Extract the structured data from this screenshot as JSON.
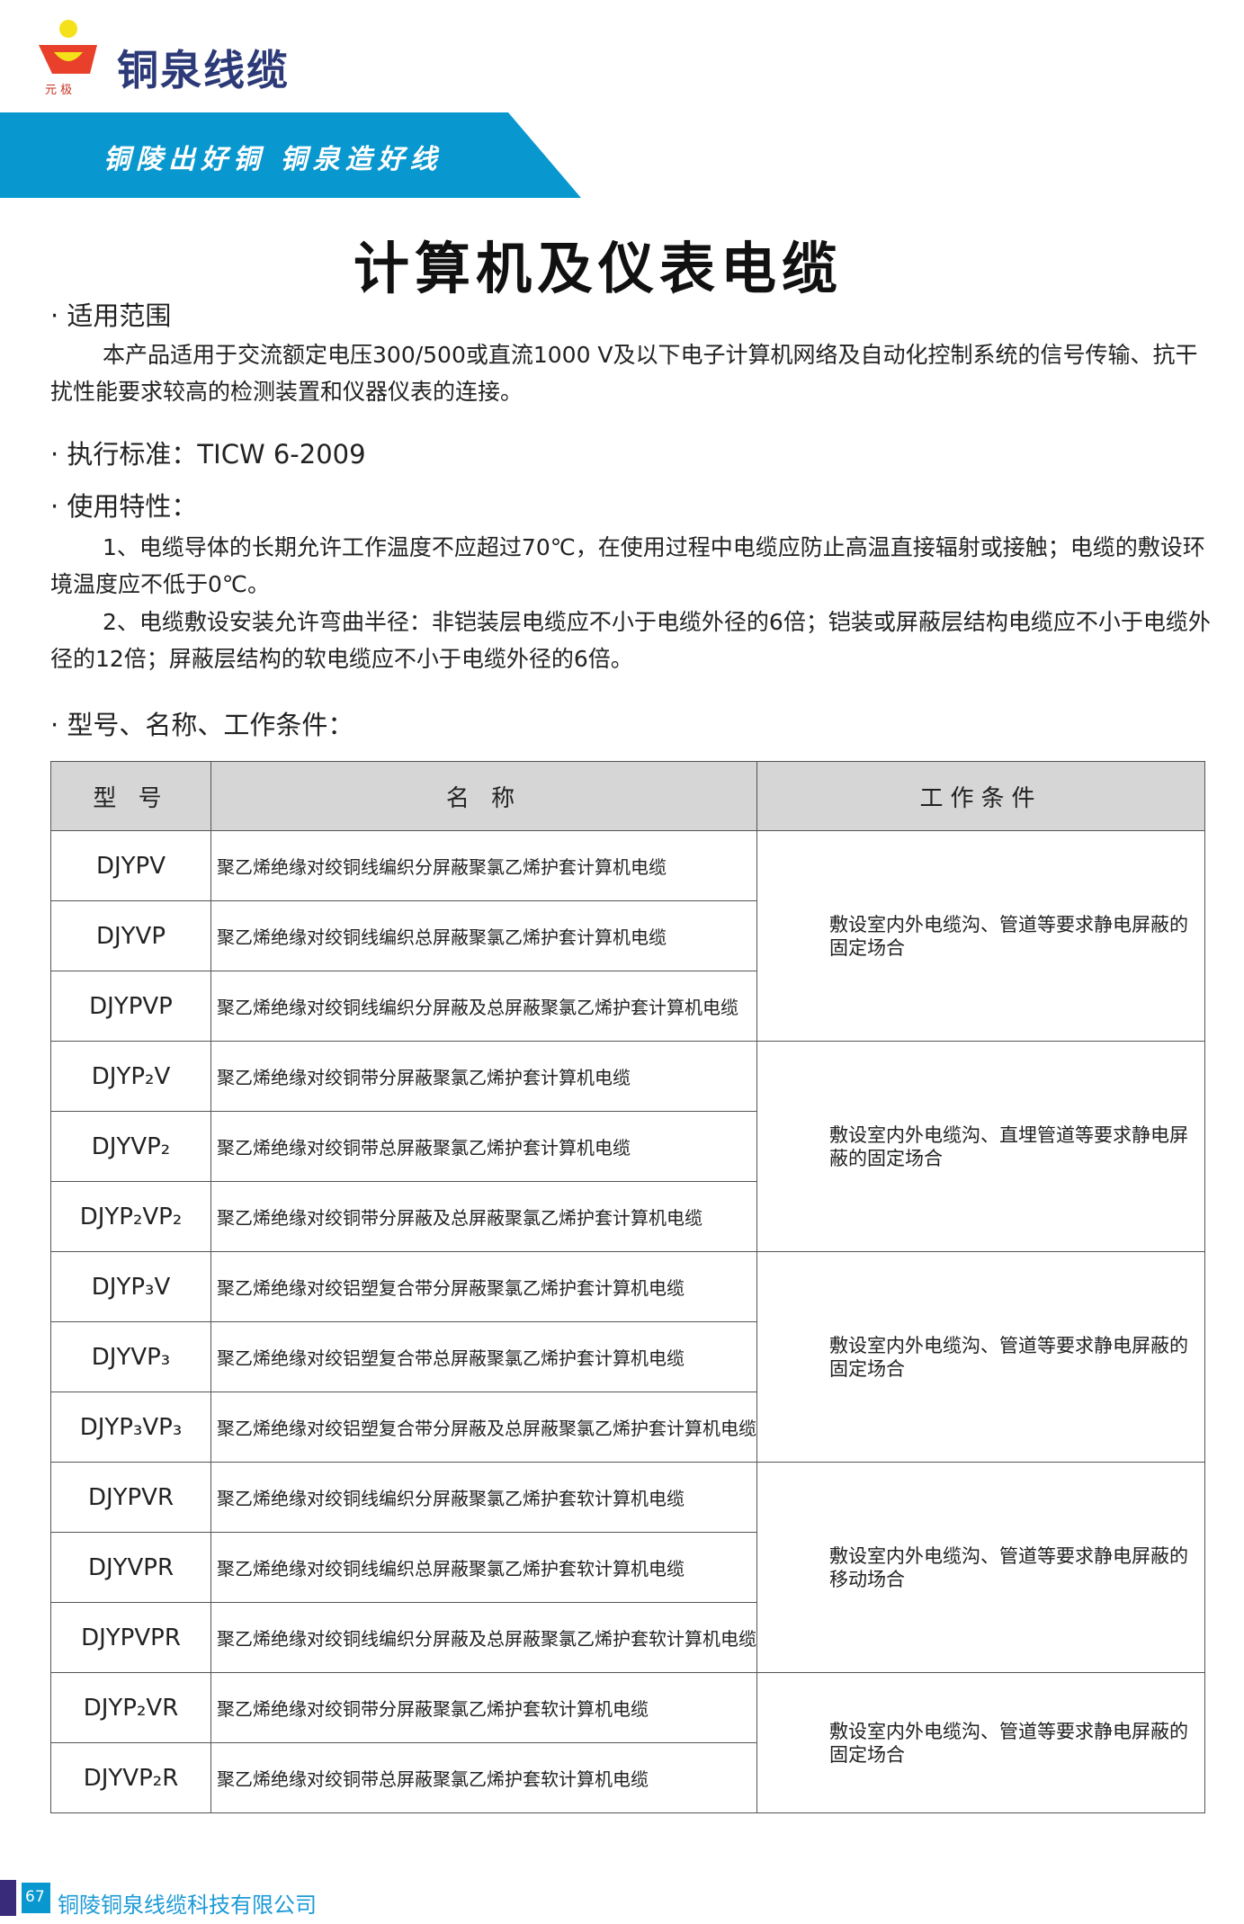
{
  "header": {
    "brand": "铜泉线缆",
    "logo_text": "元极",
    "slogan": "铜陵出好铜  铜泉造好线",
    "banner_color": "#0898cf"
  },
  "title": "计算机及仪表电缆",
  "scope": {
    "heading": "· 适用范围",
    "text": "本产品适用于交流额定电压300/500或直流1000  V及以下电子计算机网络及自动化控制系统的信号传输、抗干扰性能要求较高的检测装置和仪器仪表的连接。"
  },
  "standard": {
    "heading": "· 执行标准：TICW 6-2009"
  },
  "features": {
    "heading": "· 使用特性：",
    "items": [
      "1、电缆导体的长期允许工作温度不应超过70℃，在使用过程中电缆应防止高温直接辐射或接触；电缆的敷设环境温度应不低于0℃。",
      "2、电缆敷设安装允许弯曲半径：非铠装层电缆应不小于电缆外径的6倍；铠装或屏蔽层结构电缆应不小于电缆外径的12倍；屏蔽层结构的软电缆应不小于电缆外径的6倍。"
    ]
  },
  "table_heading": "· 型号、名称、工作条件：",
  "table": {
    "headers": [
      "型 号",
      "名 称",
      "工作条件"
    ],
    "groups": [
      {
        "condition": "敷设室内外电缆沟、管道等要求静电屏蔽的固定场合",
        "rows": [
          [
            "DJYPV",
            "聚乙烯绝缘对绞铜线编织分屏蔽聚氯乙烯护套计算机电缆"
          ],
          [
            "DJYVP",
            "聚乙烯绝缘对绞铜线编织总屏蔽聚氯乙烯护套计算机电缆"
          ],
          [
            "DJYPVP",
            "聚乙烯绝缘对绞铜线编织分屏蔽及总屏蔽聚氯乙烯护套计算机电缆"
          ]
        ]
      },
      {
        "condition": "敷设室内外电缆沟、直埋管道等要求静电屏蔽的固定场合",
        "rows": [
          [
            "DJYP₂V",
            "聚乙烯绝缘对绞铜带分屏蔽聚氯乙烯护套计算机电缆"
          ],
          [
            "DJYVP₂",
            "聚乙烯绝缘对绞铜带总屏蔽聚氯乙烯护套计算机电缆"
          ],
          [
            "DJYP₂VP₂",
            "聚乙烯绝缘对绞铜带分屏蔽及总屏蔽聚氯乙烯护套计算机电缆"
          ]
        ]
      },
      {
        "condition": "敷设室内外电缆沟、管道等要求静电屏蔽的固定场合",
        "rows": [
          [
            "DJYP₃V",
            "聚乙烯绝缘对绞铝塑复合带分屏蔽聚氯乙烯护套计算机电缆"
          ],
          [
            "DJYVP₃",
            "聚乙烯绝缘对绞铝塑复合带总屏蔽聚氯乙烯护套计算机电缆"
          ],
          [
            "DJYP₃VP₃",
            "聚乙烯绝缘对绞铝塑复合带分屏蔽及总屏蔽聚氯乙烯护套计算机电缆"
          ]
        ]
      },
      {
        "condition": "敷设室内外电缆沟、管道等要求静电屏蔽的移动场合",
        "rows": [
          [
            "DJYPVR",
            "聚乙烯绝缘对绞铜线编织分屏蔽聚氯乙烯护套软计算机电缆"
          ],
          [
            "DJYVPR",
            "聚乙烯绝缘对绞铜线编织总屏蔽聚氯乙烯护套软计算机电缆"
          ],
          [
            "DJYPVPR",
            "聚乙烯绝缘对绞铜线编织分屏蔽及总屏蔽聚氯乙烯护套软计算机电缆"
          ]
        ]
      },
      {
        "condition": "敷设室内外电缆沟、管道等要求静电屏蔽的固定场合",
        "rows": [
          [
            "DJYP₂VR",
            "聚乙烯绝缘对绞铜带分屏蔽聚氯乙烯护套软计算机电缆"
          ],
          [
            "DJYVP₂R",
            "聚乙烯绝缘对绞铜带总屏蔽聚氯乙烯护套软计算机电缆"
          ]
        ]
      }
    ]
  },
  "footer": {
    "page": "67",
    "company": "铜陵铜泉线缆科技有限公司"
  }
}
